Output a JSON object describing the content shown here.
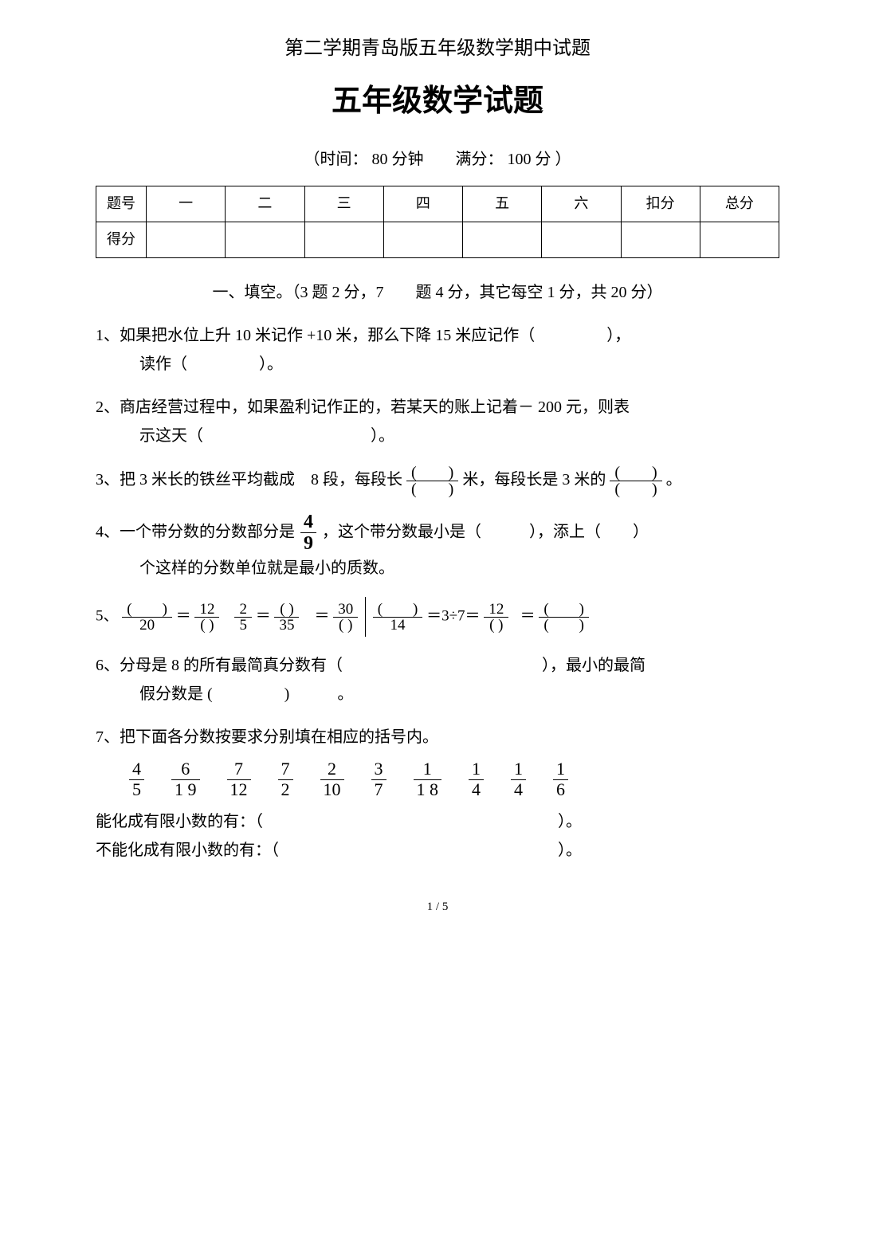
{
  "header": {
    "subtitle": "第二学期青岛版五年级数学期中试题",
    "title": "五年级数学试题",
    "time_info": "（时间： 80 分钟　　满分： 100 分 ）"
  },
  "score_table": {
    "row_labels": [
      "题号",
      "得分"
    ],
    "cols": [
      "一",
      "二",
      "三",
      "四",
      "五",
      "六",
      "扣分",
      "总分"
    ]
  },
  "section1": {
    "title": "一、填空。（3 题 2 分，7　　题 4 分，其它每空 1 分，共 20 分）"
  },
  "q1": {
    "prefix": "1、如果把水位上升 10 米记作 +10 米，那么下降 15 米应记作（",
    "blank1": "　　　　",
    "mid": "），",
    "line2_pre": "读作（",
    "blank2": "　　　　",
    "line2_post": "）。"
  },
  "q2": {
    "prefix": "2、商店经营过程中，如果盈利记作正的，若某天的账上记着－ 200 元，则表",
    "line2_pre": "示这天（",
    "blank": "　　　　　　　　　　",
    "line2_post": "）。"
  },
  "q3": {
    "prefix": "3、把 3 米长的铁丝平均截成　8 段，每段长",
    "frac1_num": "(　　)",
    "frac1_den": "(　　)",
    "mid": " 米，每段长是 3 米的",
    "frac2_num": "(　　)",
    "frac2_den": "(　　)",
    "suffix": "。"
  },
  "q4": {
    "prefix": "4、一个带分数的分数部分是 ",
    "frac_num": "4",
    "frac_den": "9",
    "mid": " ，这个带分数最小是（　　　），添上（　　）",
    "line2": "个这样的分数单位就是最小的质数。"
  },
  "q5": {
    "label": "5、",
    "f1_num": "(　　)",
    "f1_den": "20",
    "eq": " ＝",
    "f2_num": "12",
    "f2_den": "(  )",
    "f3_num": "2",
    "f3_den": "5",
    "f4_num": "( )",
    "f4_den": "35",
    "f5_num": "30",
    "f5_den": "( )",
    "f6_num": "(　　)",
    "f6_den": "14",
    "expr": " ＝3÷7＝",
    "f7_num": "12",
    "f7_den": "( )",
    "f8_num": "(　　)",
    "f8_den": "(　　)"
  },
  "q6": {
    "prefix": "6、分母是 8 的所有最简真分数有（",
    "blank1": "　　　　　　　　　　　　",
    "mid": "），最小的最简",
    "line2_pre": "假分数是 (",
    "blank2": "　　　　",
    "line2_post": ")　　　。"
  },
  "q7": {
    "title": "7、把下面各分数按要求分别填在相应的括号内。",
    "fractions": [
      {
        "num": "4",
        "den": "5"
      },
      {
        "num": "6",
        "den": "1 9"
      },
      {
        "num": "7",
        "den": "12"
      },
      {
        "num": "7",
        "den": "2"
      },
      {
        "num": "2",
        "den": "10"
      },
      {
        "num": "3",
        "den": "7"
      },
      {
        "num": "1",
        "den": "1 8"
      },
      {
        "num": "1",
        "den": "4"
      },
      {
        "num": "1",
        "den": "4"
      },
      {
        "num": "1",
        "den": "6"
      }
    ],
    "line1_pre": "能化成有限小数的有：（",
    "line1_blank": "　　　　　　　　　　　　　　　　　　",
    "line1_post": "）。",
    "line2_pre": "不能化成有限小数的有：（",
    "line2_blank": "　　　　　　　　　　　　　　　　　",
    "line2_post": "）。"
  },
  "page_num": "1 / 5"
}
